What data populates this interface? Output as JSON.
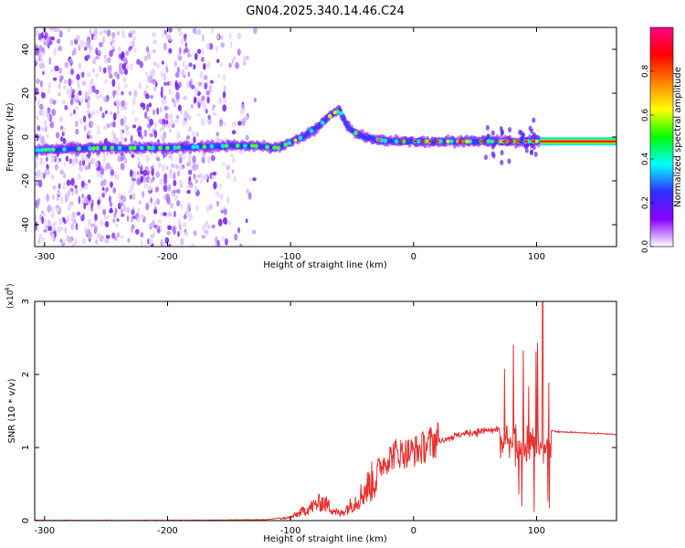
{
  "title": "GN04.2025.340.14.46.C24",
  "chart_data": [
    {
      "type": "heatmap",
      "xlabel": "Height of straight line (km)",
      "ylabel": "Frequency (Hz)",
      "xlim": [
        -308,
        165
      ],
      "ylim": [
        -50,
        50
      ],
      "xticks": [
        -300,
        -200,
        -100,
        0,
        100
      ],
      "yticks": [
        -40,
        -20,
        0,
        20,
        40
      ],
      "ridge": {
        "x": [
          -308,
          -250,
          -200,
          -150,
          -130,
          -110,
          -90,
          -75,
          -65,
          -60,
          -55,
          -50,
          -45,
          -40,
          -30,
          -20,
          -10,
          0,
          30,
          60,
          80,
          90,
          100,
          105,
          165
        ],
        "y": [
          -6,
          -5,
          -5,
          -4,
          -4,
          -5,
          0,
          6,
          11,
          12,
          6,
          3,
          1,
          0,
          -1,
          -2,
          -2,
          -2,
          -2,
          -2,
          -2,
          -2,
          -2,
          -2,
          -2
        ]
      },
      "colorbar": {
        "label": "Normalized spectral amplitude",
        "ticks": [
          "0.0",
          "0.2",
          "0.4",
          "0.6",
          "0.8"
        ],
        "range": [
          0,
          1
        ],
        "colors": [
          "#ffffff",
          "#8a00ff",
          "#3030ff",
          "#00ffff",
          "#00ff00",
          "#ffff00",
          "#ff8000",
          "#ff0000",
          "#ff0088"
        ]
      }
    },
    {
      "type": "line",
      "xlabel": "Height of straight line (km)",
      "ylabel": "SNR (10 * v/v)",
      "scale_note": "(x10",
      "scale_exp": "4",
      "xlim": [
        -308,
        165
      ],
      "ylim": [
        0,
        3
      ],
      "xticks": [
        -300,
        -200,
        -100,
        0,
        100
      ],
      "yticks": [
        0,
        1,
        2,
        3
      ],
      "color": "#e83030",
      "envelope": {
        "x": [
          -308,
          -200,
          -120,
          -100,
          -90,
          -80,
          -75,
          -70,
          -60,
          -45,
          -35,
          -25,
          -15,
          -5,
          5,
          20,
          40,
          60,
          70,
          75,
          80,
          90,
          95,
          100,
          105,
          110,
          115,
          140,
          165
        ],
        "y": [
          0,
          0,
          0.01,
          0.05,
          0.15,
          0.25,
          0.3,
          0.25,
          0.1,
          0.35,
          0.6,
          0.8,
          0.95,
          0.95,
          1.0,
          1.15,
          1.25,
          1.3,
          1.3,
          1.35,
          1.3,
          1.25,
          1.3,
          1.3,
          1.2,
          1.25,
          1.22,
          1.2,
          1.18
        ]
      }
    }
  ]
}
